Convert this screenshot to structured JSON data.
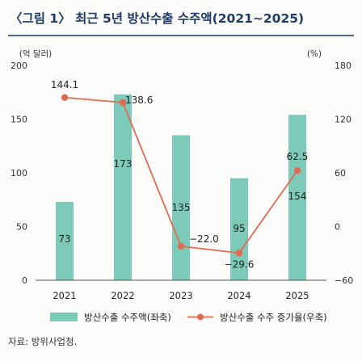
{
  "title": "〈그림 1〉 최근 5년 방산수출 수주액(2021~2025)",
  "source": "자료: 방위사업청.",
  "chart_data": {
    "type": "bar+line",
    "categories": [
      "2021",
      "2022",
      "2023",
      "2024",
      "2025"
    ],
    "left_axis": {
      "unit_label": "(억 달러)",
      "ylim": [
        0,
        200
      ],
      "ticks": [
        0,
        50,
        100,
        150,
        200
      ]
    },
    "right_axis": {
      "unit_label": "(%)",
      "ylim": [
        -60,
        180
      ],
      "ticks": [
        -60,
        0,
        60,
        120,
        180
      ]
    },
    "series": [
      {
        "name": "방산수출 수주액(좌축)",
        "type": "bar",
        "axis": "left",
        "color": "#7ccab7",
        "values": [
          73,
          173,
          135,
          95,
          154
        ],
        "labels": [
          "73",
          "173",
          "135",
          "95",
          "154"
        ]
      },
      {
        "name": "방산수출 수주 증가율(우축)",
        "type": "line",
        "axis": "right",
        "color": "#e06b55",
        "values": [
          144.1,
          138.6,
          -22.0,
          -29.6,
          62.5
        ],
        "labels": [
          "144.1",
          "138.6",
          "−22.0",
          "−29.6",
          "62.5"
        ]
      }
    ],
    "grid": false,
    "legend_position": "bottom"
  }
}
